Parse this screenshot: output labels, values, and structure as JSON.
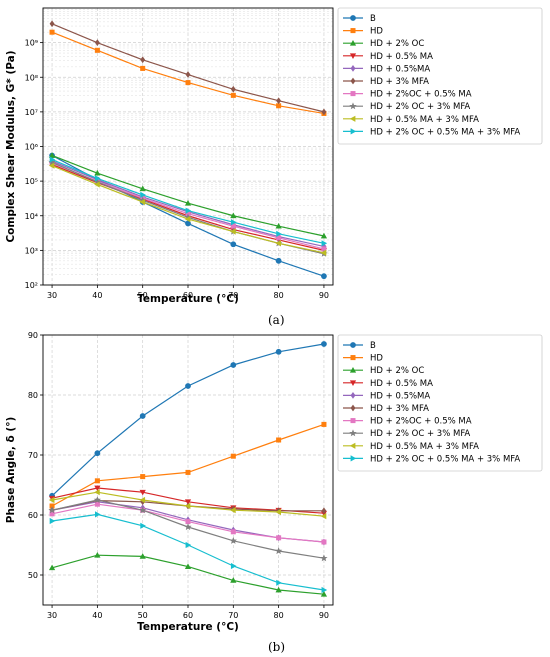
{
  "captions": [
    "(a)",
    "(b)"
  ],
  "colors": {
    "B": "#1f77b4",
    "HD": "#ff7f0e",
    "HD + 2% OC": "#2ca02c",
    "HD + 0.5% MA": "#d62728",
    "HD + 0.5%MA": "#9467bd",
    "HD + 3% MFA": "#8c564b",
    "HD + 2%OC + 0.5% MA": "#e377c2",
    "HD + 2% OC + 3% MFA": "#7f7f7f",
    "HD + 0.5% MA + 3% MFA": "#bcbd22",
    "HD + 2% OC + 0.5% MA +  3% MFA": "#17becf"
  },
  "markers": [
    "circle",
    "square",
    "triangle-up",
    "triangle-down",
    "diamond",
    "diamond",
    "square",
    "star",
    "triangle-left",
    "triangle-right"
  ],
  "chart_data": [
    {
      "type": "line",
      "xlabel": "Temperature (°C)",
      "ylabel": "Complex Shear Modulus, G* (Pa)",
      "yscale": "log",
      "xlim": [
        28,
        92
      ],
      "ylim": [
        100,
        10000000000
      ],
      "xticks": [
        "30",
        "40",
        "50",
        "60",
        "70",
        "80",
        "90"
      ],
      "yticks": [
        "10²",
        "10³",
        "10⁴",
        "10⁵",
        "10⁶",
        "10⁷",
        "10⁸",
        "10⁹"
      ],
      "grid": true,
      "legend_position": "outside-right",
      "x": [
        30,
        40,
        50,
        60,
        70,
        80,
        90
      ],
      "series": [
        {
          "name": "B",
          "values": [
            550000,
            110000,
            25000,
            6000,
            1500,
            500,
            180
          ]
        },
        {
          "name": "HD",
          "values": [
            2000000000,
            600000000,
            180000000,
            70000000,
            30000000,
            15000000,
            9000000
          ]
        },
        {
          "name": "HD + 2% OC",
          "values": [
            550000,
            170000,
            60000,
            23000,
            10000,
            5000,
            2600
          ]
        },
        {
          "name": "HD + 0.5% MA",
          "values": [
            300000,
            90000,
            30000,
            10000,
            4000,
            2000,
            1000
          ]
        },
        {
          "name": "HD + 0.5%MA",
          "values": [
            380000,
            110000,
            35000,
            13000,
            5500,
            2500,
            1300
          ]
        },
        {
          "name": "HD + 3% MFA",
          "values": [
            3500000000,
            1000000000,
            320000000,
            120000000,
            45000000,
            21000000,
            10000000
          ]
        },
        {
          "name": "HD + 2%OC + 0.5% MA",
          "values": [
            330000,
            100000,
            32000,
            11500,
            5000,
            2300,
            1100
          ]
        },
        {
          "name": "HD + 2% OC + 3% MFA",
          "values": [
            350000,
            95000,
            28000,
            9000,
            3500,
            1600,
            800
          ]
        },
        {
          "name": "HD + 0.5% MA + 3% MFA",
          "values": [
            280000,
            80000,
            25000,
            8000,
            3500,
            1600,
            850
          ]
        },
        {
          "name": "HD + 2% OC + 0.5% MA +  3% MFA",
          "values": [
            420000,
            120000,
            40000,
            14000,
            6500,
            3000,
            1600
          ]
        }
      ]
    },
    {
      "type": "line",
      "xlabel": "Temperature (°C)",
      "ylabel": "Phase Angle, δ (°)",
      "yscale": "linear",
      "xlim": [
        28,
        92
      ],
      "ylim": [
        45,
        90
      ],
      "xticks": [
        "30",
        "40",
        "50",
        "60",
        "70",
        "80",
        "90"
      ],
      "yticks": [
        "50",
        "60",
        "70",
        "80",
        "90"
      ],
      "grid": true,
      "legend_position": "outside-right",
      "x": [
        30,
        40,
        50,
        60,
        70,
        80,
        90
      ],
      "series": [
        {
          "name": "B",
          "values": [
            63.2,
            70.3,
            76.5,
            81.5,
            85.0,
            87.2,
            88.5
          ]
        },
        {
          "name": "HD",
          "values": [
            61.5,
            65.7,
            66.4,
            67.1,
            69.8,
            72.5,
            75.1
          ]
        },
        {
          "name": "HD + 2% OC",
          "values": [
            51.2,
            53.3,
            53.1,
            51.4,
            49.1,
            47.5,
            46.8
          ]
        },
        {
          "name": "HD + 0.5% MA",
          "values": [
            62.8,
            64.5,
            63.8,
            62.2,
            61.2,
            60.8,
            60.3
          ]
        },
        {
          "name": "HD + 0.5%MA",
          "values": [
            60.8,
            62.2,
            61.2,
            59.2,
            57.5,
            56.2,
            55.5
          ]
        },
        {
          "name": "HD + 3% MFA",
          "values": [
            60.8,
            62.4,
            62.2,
            61.5,
            61.0,
            60.7,
            60.7
          ]
        },
        {
          "name": "HD + 2%OC + 0.5% MA",
          "values": [
            60.2,
            61.8,
            60.8,
            58.9,
            57.2,
            56.2,
            55.5
          ]
        },
        {
          "name": "HD + 2% OC + 3% MFA",
          "values": [
            60.8,
            62.5,
            60.8,
            58.0,
            55.7,
            54.0,
            52.8
          ]
        },
        {
          "name": "HD + 0.5% MA + 3% MFA",
          "values": [
            62.5,
            63.8,
            62.5,
            61.5,
            60.8,
            60.5,
            59.8
          ]
        },
        {
          "name": "HD + 2% OC + 0.5% MA +  3% MFA",
          "values": [
            59.0,
            60.1,
            58.2,
            55.0,
            51.5,
            48.7,
            47.5
          ]
        }
      ]
    }
  ]
}
